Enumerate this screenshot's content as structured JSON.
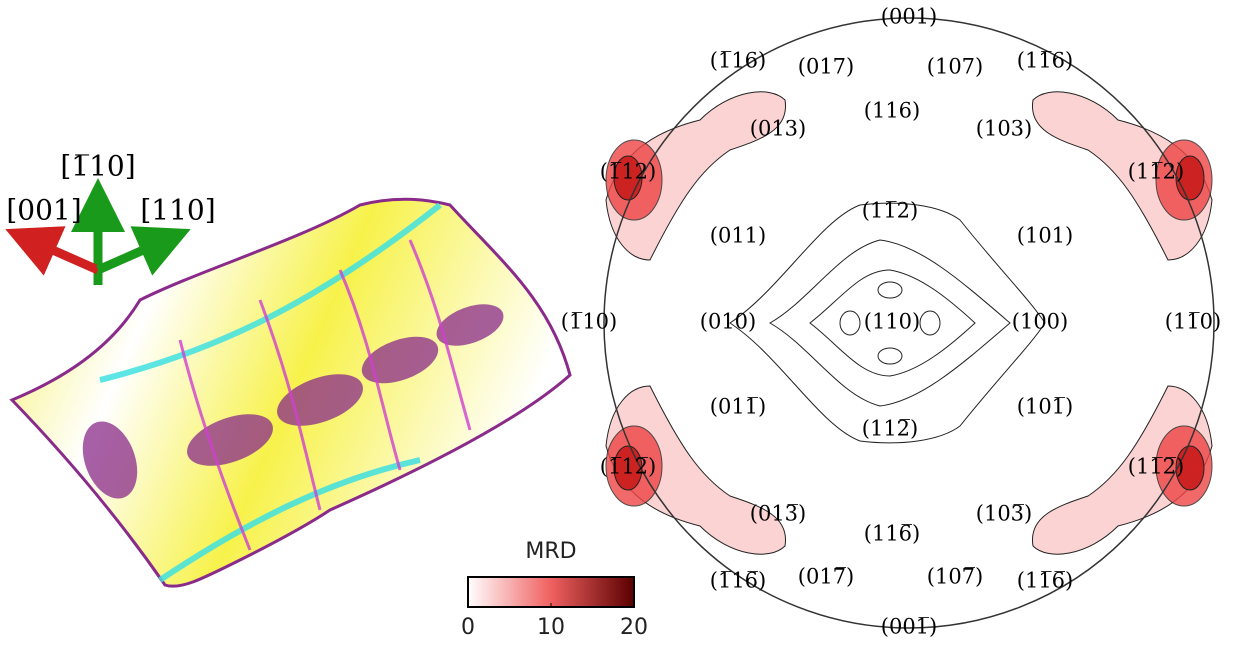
{
  "triad": {
    "labels": [
      "[1̅10]",
      "[001]",
      "[110]"
    ]
  },
  "colorbar": {
    "title": "MRD",
    "lim": [
      0,
      20
    ],
    "ticks": [
      0,
      10,
      20
    ]
  },
  "pole_figure": {
    "labels": [
      "(001)",
      "(1̅16)",
      "(017)",
      "(107)",
      "(11̅6)",
      "(116)",
      "(013)",
      "(103)",
      "(1̅12)",
      "(11̅2)",
      "(11̅2)",
      "(011)",
      "(101)",
      "(1̅10)",
      "(010)",
      "(110)",
      "(100)",
      "(11̅0)",
      "(011̅)",
      "(101̅)",
      "(112̅)",
      "(1̅12̅)",
      "(11̅2̅)",
      "(013̅)",
      "(103̅)",
      "(116̅)",
      "(1̅16̅)",
      "(017̅)",
      "(107̅)",
      "(11̅6̅)",
      "(001̅)"
    ]
  }
}
